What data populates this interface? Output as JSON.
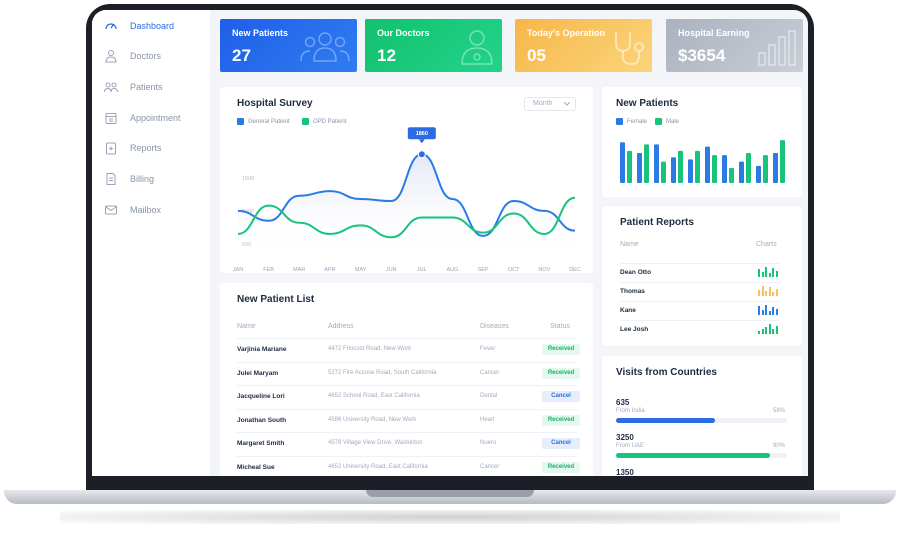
{
  "sidebar": {
    "items": [
      {
        "label": "Dashboard",
        "icon": "gauge-icon",
        "active": true
      },
      {
        "label": "Doctors",
        "icon": "doctor-icon"
      },
      {
        "label": "Patients",
        "icon": "patients-icon"
      },
      {
        "label": "Appointment",
        "icon": "calendar-icon"
      },
      {
        "label": "Reports",
        "icon": "clipboard-icon"
      },
      {
        "label": "Billing",
        "icon": "invoice-icon"
      },
      {
        "label": "Mailbox",
        "icon": "mail-icon"
      }
    ]
  },
  "stats": [
    {
      "title": "New Patients",
      "value": "27",
      "color": "#1f5fe8",
      "icon": "users-icon"
    },
    {
      "title": "Our Doctors",
      "value": "12",
      "color": "#17c47a",
      "icon": "doctor-icon"
    },
    {
      "title": "Today's Operation",
      "value": "05",
      "color": "#f8c15a",
      "icon": "stethoscope-icon"
    },
    {
      "title": "Hospital Earning",
      "value": "$3654",
      "color": "#b4bbc6",
      "icon": "bar-chart-icon"
    }
  ],
  "survey": {
    "title": "Hospital Survey",
    "period": "Month",
    "tooltip": "1860"
  },
  "chart_data": [
    {
      "type": "line",
      "x": [
        "JAN",
        "FEB",
        "MAR",
        "APR",
        "MAY",
        "JUN",
        "JUL",
        "AUG",
        "SEP",
        "OCT",
        "NOV",
        "DEC"
      ],
      "yticks": [
        "1500",
        "1000",
        "500"
      ],
      "series": [
        {
          "name": "General Patient",
          "color": "#2c7be5",
          "values": [
            1000,
            850,
            1230,
            1300,
            1180,
            1150,
            1860,
            1180,
            620,
            1150,
            1000,
            700
          ]
        },
        {
          "name": "OPD Patient",
          "color": "#17c47a",
          "values": [
            650,
            1080,
            820,
            650,
            780,
            600,
            900,
            900,
            670,
            960,
            650,
            1200
          ]
        }
      ]
    },
    {
      "type": "bar",
      "title": "New Patients",
      "series": [
        {
          "name": "Female",
          "color": "#2c7be5",
          "values": [
            38,
            28,
            36,
            24,
            22,
            34,
            26,
            20,
            16,
            28
          ]
        },
        {
          "name": "Male",
          "color": "#17c47a",
          "values": [
            30,
            36,
            20,
            30,
            30,
            26,
            14,
            28,
            26,
            40
          ]
        }
      ]
    }
  ],
  "patient_list": {
    "title": "New Patient List",
    "headers": [
      "Name",
      "Address",
      "Diseases",
      "Status"
    ],
    "rows": [
      {
        "name": "Varjinia Mariane",
        "address": "4472 Frlocost Road, New Work",
        "disease": "Fever",
        "status": "Received"
      },
      {
        "name": "Julei Maryam",
        "address": "5272 Fire Accose Road, South California",
        "disease": "Cancer",
        "status": "Received"
      },
      {
        "name": "Jacqueline Lori",
        "address": "4652 School Road, East California",
        "disease": "Dental",
        "status": "Cancel"
      },
      {
        "name": "Jonathan South",
        "address": "4586 University Road, New Work",
        "disease": "Heart",
        "status": "Received"
      },
      {
        "name": "Margaret Smith",
        "address": "4578 Village View Drive, Washinton",
        "disease": "Nuero",
        "status": "Cancel"
      },
      {
        "name": "Micheal Sue",
        "address": "4652 University Road, East California",
        "disease": "Cancer",
        "status": "Received"
      }
    ]
  },
  "reports": {
    "title": "Patient Reports",
    "headers": [
      "Name",
      "Charts"
    ],
    "rows": [
      {
        "name": "Dean Otto",
        "color": "#17c47a",
        "bars": [
          0.8,
          0.5,
          1.0,
          0.4,
          0.9,
          0.6
        ]
      },
      {
        "name": "Thomas",
        "color": "#f8c15a",
        "bars": [
          0.6,
          1.0,
          0.5,
          0.9,
          0.4,
          0.7
        ]
      },
      {
        "name": "Kane",
        "color": "#2c7be5",
        "bars": [
          0.9,
          0.5,
          1.0,
          0.4,
          0.8,
          0.6
        ]
      },
      {
        "name": "Lee Josh",
        "color": "#17c47a",
        "bars": [
          0.3,
          0.5,
          0.7,
          1.0,
          0.5,
          0.8
        ]
      }
    ]
  },
  "visits": {
    "title": "Visits from Countries",
    "rows": [
      {
        "value": "635",
        "from": "From India",
        "pct": "58%",
        "fraction": 0.58,
        "color": "#2c6be0"
      },
      {
        "value": "3250",
        "from": "From UAE",
        "pct": "90%",
        "fraction": 0.9,
        "color": "#17c47a"
      },
      {
        "value": "1350",
        "from": "",
        "pct": "",
        "fraction": 0,
        "color": "#2c6be0"
      }
    ]
  }
}
